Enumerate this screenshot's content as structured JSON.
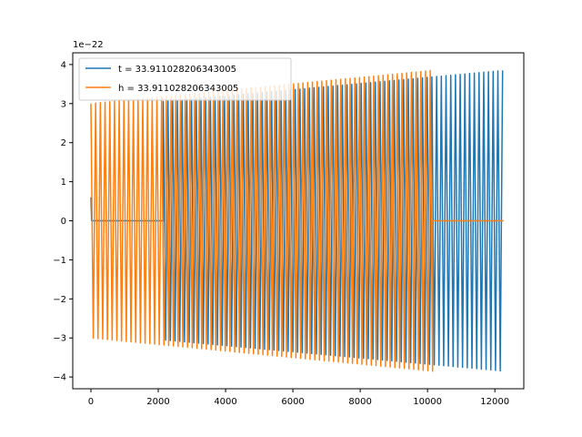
{
  "chart_data": {
    "type": "line",
    "title": "",
    "xlabel": "",
    "ylabel": "",
    "offset_text": "1e−22",
    "xlim": [
      -540,
      12860
    ],
    "ylim": [
      -4.3,
      4.3
    ],
    "xticks": [
      0,
      2000,
      4000,
      6000,
      8000,
      10000,
      12000
    ],
    "xtick_labels": [
      "0",
      "2000",
      "4000",
      "6000",
      "8000",
      "10000",
      "12000"
    ],
    "yticks": [
      -4,
      -3,
      -2,
      -1,
      0,
      1,
      2,
      3,
      4
    ],
    "ytick_labels": [
      "−4",
      "−3",
      "−2",
      "−1",
      "0",
      "1",
      "2",
      "3",
      "4"
    ],
    "grid": false,
    "legend_position": "top-left",
    "series": [
      {
        "name": "t = 33.911028206343005",
        "color": "#1f77b4",
        "flat_start": [
          0,
          2150
        ],
        "oscillation": [
          2150,
          12260
        ],
        "period": 140,
        "amplitude_start": 3.05,
        "amplitude_end": 3.85,
        "flat_value": 0,
        "initial_spike": 0.6
      },
      {
        "name": "h = 33.911028206343005",
        "color": "#ff7f0e",
        "flat_start": [
          0,
          0
        ],
        "oscillation": [
          0,
          10150
        ],
        "flat_end": [
          10150,
          12260
        ],
        "period": 140,
        "amplitude_start": 3.0,
        "amplitude_end": 3.85,
        "flat_value": 0
      }
    ]
  }
}
